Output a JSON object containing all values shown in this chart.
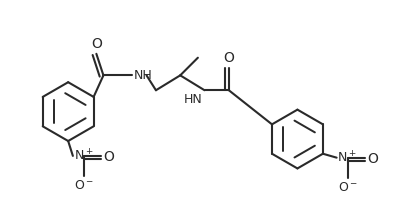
{
  "bg_color": "#ffffff",
  "line_color": "#2a2a2a",
  "line_width": 1.5,
  "figsize": [
    3.95,
    2.24
  ],
  "dpi": 100,
  "xlim": [
    0,
    10
  ],
  "ylim": [
    0,
    5.68
  ]
}
